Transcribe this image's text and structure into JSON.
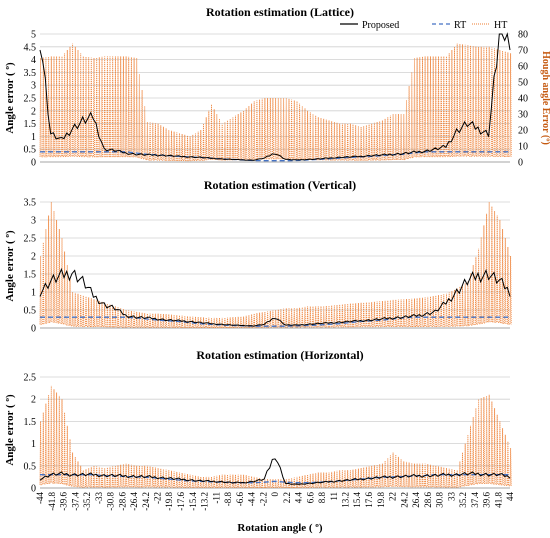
{
  "legend": {
    "proposed": "Proposed",
    "rt": "RT",
    "ht": "HT"
  },
  "colors": {
    "proposed": "#000000",
    "rt": "#4472c4",
    "ht": "#ed7d31",
    "grid": "#d0d0d0"
  },
  "x_tick_labels": [
    "-44",
    "-41.8",
    "-39.6",
    "-37.4",
    "-35.2",
    "-33",
    "-30.8",
    "-28.6",
    "-26.4",
    "-24.2",
    "-22",
    "-19.8",
    "-17.6",
    "-15.4",
    "-13.2",
    "-11",
    "-8.8",
    "-6.6",
    "-4.4",
    "-2.2",
    "0",
    "2.2",
    "4.4",
    "6.6",
    "8.8",
    "11",
    "13.2",
    "15.4",
    "17.6",
    "19.8",
    "22",
    "24.2",
    "26.4",
    "28.6",
    "30.8",
    "33",
    "35.2",
    "37.4",
    "39.6",
    "41.8",
    "44"
  ],
  "x_label": "Rotation angle ( º)",
  "chart_data": [
    {
      "type": "line",
      "title": "Rotation estimation (Lattice)",
      "ylabel": "Angle error ( º)",
      "ylabel2": "Hough angle Error (º)",
      "ylim": [
        0,
        5
      ],
      "yticks": [
        "0",
        "0.5",
        "1",
        "1.5",
        "2",
        "2.5",
        "3",
        "3.5",
        "4",
        "4.5",
        "5"
      ],
      "y2lim": [
        0,
        80
      ],
      "y2ticks": [
        "0",
        "10",
        "20",
        "30",
        "40",
        "50",
        "60",
        "70",
        "80"
      ],
      "legend_position": "top",
      "x": [
        -44,
        -42,
        -40,
        -38,
        -36,
        -34,
        -32,
        -30,
        -28,
        -26,
        -24,
        -22,
        -20,
        -18,
        -16,
        -14,
        -12,
        -10,
        -8,
        -6,
        -4,
        -2,
        0,
        2,
        4,
        6,
        8,
        10,
        12,
        14,
        16,
        18,
        20,
        22,
        24,
        26,
        28,
        30,
        32,
        34,
        36,
        38,
        40,
        42,
        44
      ],
      "series": [
        {
          "name": "Proposed",
          "axis": "left",
          "values": [
            5,
            1.1,
            0.85,
            1.3,
            1.6,
            1.75,
            0.5,
            0.45,
            0.35,
            0.3,
            0.28,
            0.27,
            0.25,
            0.22,
            0.2,
            0.18,
            0.15,
            0.12,
            0.1,
            0.08,
            0.07,
            0.15,
            0.35,
            0.1,
            0.08,
            0.1,
            0.12,
            0.15,
            0.18,
            0.2,
            0.22,
            0.25,
            0.27,
            0.3,
            0.33,
            0.38,
            0.42,
            0.5,
            0.6,
            1.2,
            1.5,
            1.3,
            1.1,
            5,
            5
          ]
        },
        {
          "name": "RT",
          "axis": "left",
          "values": [
            0.4,
            0.4,
            0.4,
            0.4,
            0.4,
            0.4,
            0.4,
            0.4,
            0.4,
            0.35,
            0.3,
            0.28,
            0.25,
            0.22,
            0.2,
            0.18,
            0.15,
            0.12,
            0.1,
            0.08,
            0.06,
            0.05,
            0.05,
            0.05,
            0.06,
            0.08,
            0.1,
            0.12,
            0.15,
            0.18,
            0.2,
            0.22,
            0.25,
            0.28,
            0.3,
            0.35,
            0.4,
            0.4,
            0.4,
            0.4,
            0.4,
            0.4,
            0.4,
            0.4,
            0.4
          ]
        },
        {
          "name": "HT",
          "axis": "right",
          "peak_values": [
            65,
            66,
            66,
            74,
            66,
            65,
            66,
            66,
            66,
            65,
            25,
            24,
            20,
            18,
            16,
            20,
            36,
            24,
            28,
            32,
            38,
            40,
            40,
            40,
            38,
            32,
            28,
            26,
            24,
            24,
            22,
            24,
            26,
            30,
            30,
            65,
            66,
            66,
            66,
            74,
            73,
            72,
            72,
            70,
            68
          ]
        }
      ]
    },
    {
      "type": "line",
      "title": "Rotation estimation (Vertical)",
      "ylabel": "Angle error ( º)",
      "ylim": [
        0,
        3.5
      ],
      "yticks": [
        "0",
        "0.5",
        "1",
        "1.5",
        "2",
        "2.5",
        "3",
        "3.5"
      ],
      "x": [
        -44,
        -42,
        -40,
        -38,
        -36,
        -34,
        -32,
        -30,
        -28,
        -26,
        -24,
        -22,
        -20,
        -18,
        -16,
        -14,
        -12,
        -10,
        -8,
        -6,
        -4,
        -2,
        0,
        2,
        4,
        6,
        8,
        10,
        12,
        14,
        16,
        18,
        20,
        22,
        24,
        26,
        28,
        30,
        32,
        34,
        36,
        38,
        40,
        42,
        44
      ],
      "series": [
        {
          "name": "Proposed",
          "values": [
            1.0,
            1.3,
            1.45,
            1.55,
            1.3,
            0.9,
            0.65,
            0.55,
            0.35,
            0.3,
            0.28,
            0.25,
            0.22,
            0.2,
            0.18,
            0.15,
            0.12,
            0.1,
            0.08,
            0.07,
            0.06,
            0.1,
            0.3,
            0.08,
            0.08,
            0.1,
            0.12,
            0.14,
            0.16,
            0.18,
            0.2,
            0.22,
            0.25,
            0.28,
            0.3,
            0.33,
            0.38,
            0.45,
            0.7,
            1.0,
            1.3,
            1.45,
            1.5,
            1.3,
            1.0
          ]
        },
        {
          "name": "RT",
          "values": [
            0.3,
            0.3,
            0.3,
            0.3,
            0.3,
            0.3,
            0.3,
            0.3,
            0.3,
            0.28,
            0.25,
            0.22,
            0.2,
            0.18,
            0.15,
            0.12,
            0.1,
            0.08,
            0.07,
            0.06,
            0.05,
            0.05,
            0.05,
            0.05,
            0.06,
            0.07,
            0.08,
            0.1,
            0.12,
            0.15,
            0.18,
            0.2,
            0.22,
            0.25,
            0.28,
            0.3,
            0.3,
            0.3,
            0.3,
            0.3,
            0.3,
            0.3,
            0.3,
            0.3,
            0.3
          ]
        },
        {
          "name": "HT",
          "peak_values": [
            2.0,
            3.5,
            2.5,
            1.0,
            0.9,
            0.8,
            0.7,
            0.6,
            0.5,
            0.45,
            0.4,
            0.4,
            0.38,
            0.35,
            0.32,
            0.3,
            0.28,
            0.28,
            0.3,
            0.32,
            0.4,
            0.45,
            0.5,
            0.55,
            0.55,
            0.6,
            0.6,
            0.62,
            0.65,
            0.68,
            0.7,
            0.72,
            0.75,
            0.78,
            0.8,
            0.82,
            0.85,
            0.9,
            0.95,
            1.1,
            1.3,
            2.2,
            3.5,
            3.0,
            2.0
          ]
        }
      ]
    },
    {
      "type": "line",
      "title": "Rotation estimation (Horizontal)",
      "ylabel": "Angle error ( º)",
      "ylim": [
        0,
        2.5
      ],
      "yticks": [
        "0",
        "0.5",
        "1",
        "1.5",
        "2",
        "2.5"
      ],
      "x": [
        -44,
        -42,
        -40,
        -38,
        -36,
        -34,
        -32,
        -30,
        -28,
        -26,
        -24,
        -22,
        -20,
        -18,
        -16,
        -14,
        -12,
        -10,
        -8,
        -6,
        -4,
        -2,
        0,
        2,
        4,
        6,
        8,
        10,
        12,
        14,
        16,
        18,
        20,
        22,
        24,
        26,
        28,
        30,
        32,
        34,
        36,
        38,
        40,
        42,
        44
      ],
      "series": [
        {
          "name": "Proposed",
          "values": [
            0.2,
            0.3,
            0.32,
            0.3,
            0.3,
            0.3,
            0.28,
            0.28,
            0.27,
            0.26,
            0.25,
            0.24,
            0.22,
            0.2,
            0.18,
            0.16,
            0.15,
            0.14,
            0.12,
            0.12,
            0.15,
            0.2,
            0.75,
            0.1,
            0.08,
            0.1,
            0.12,
            0.14,
            0.16,
            0.18,
            0.2,
            0.22,
            0.24,
            0.25,
            0.26,
            0.27,
            0.28,
            0.28,
            0.3,
            0.3,
            0.32,
            0.32,
            0.3,
            0.3,
            0.25
          ]
        },
        {
          "name": "RT",
          "values": [
            0.3,
            0.3,
            0.3,
            0.3,
            0.3,
            0.3,
            0.28,
            0.27,
            0.26,
            0.25,
            0.24,
            0.22,
            0.2,
            0.18,
            0.16,
            0.15,
            0.14,
            0.13,
            0.12,
            0.12,
            0.12,
            0.13,
            0.15,
            0.13,
            0.12,
            0.12,
            0.13,
            0.14,
            0.16,
            0.18,
            0.2,
            0.22,
            0.24,
            0.25,
            0.26,
            0.27,
            0.28,
            0.3,
            0.3,
            0.3,
            0.3,
            0.3,
            0.3,
            0.3,
            0.3
          ]
        },
        {
          "name": "HT",
          "peak_values": [
            1.5,
            2.3,
            2.0,
            0.8,
            0.4,
            0.5,
            0.45,
            0.5,
            0.55,
            0.5,
            0.5,
            0.45,
            0.4,
            0.35,
            0.3,
            0.25,
            0.25,
            0.3,
            0.3,
            0.3,
            0.25,
            0.2,
            0.2,
            0.2,
            0.25,
            0.3,
            0.35,
            0.35,
            0.4,
            0.4,
            0.45,
            0.5,
            0.55,
            0.8,
            0.6,
            0.55,
            0.55,
            0.5,
            0.45,
            0.4,
            1.2,
            2.0,
            2.1,
            1.5,
            0.9
          ]
        }
      ]
    }
  ]
}
